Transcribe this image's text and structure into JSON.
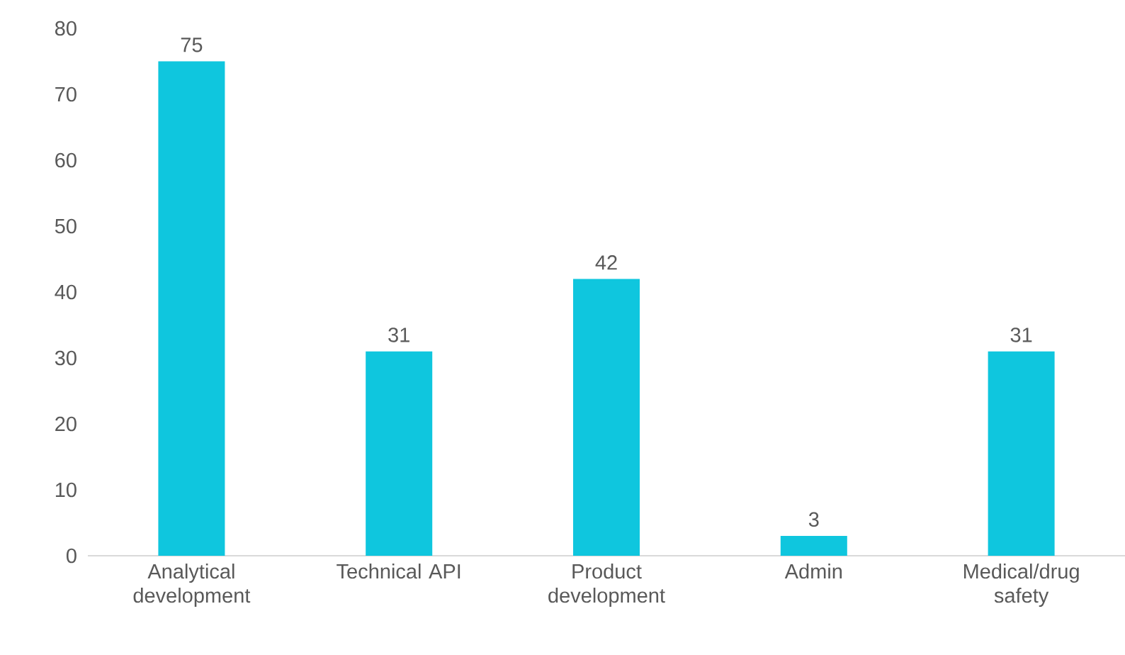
{
  "chart_data": {
    "type": "bar",
    "categories": [
      "Analytical development",
      "Technical API",
      "Product development",
      "Admin",
      "Medical/drug safety"
    ],
    "values": [
      75,
      31,
      42,
      3,
      31
    ],
    "color": "#0fc6de",
    "ylim": [
      0,
      80
    ],
    "yticks": [
      0,
      10,
      20,
      30,
      40,
      50,
      60,
      70,
      80
    ],
    "data_labels": true,
    "grid": false
  }
}
